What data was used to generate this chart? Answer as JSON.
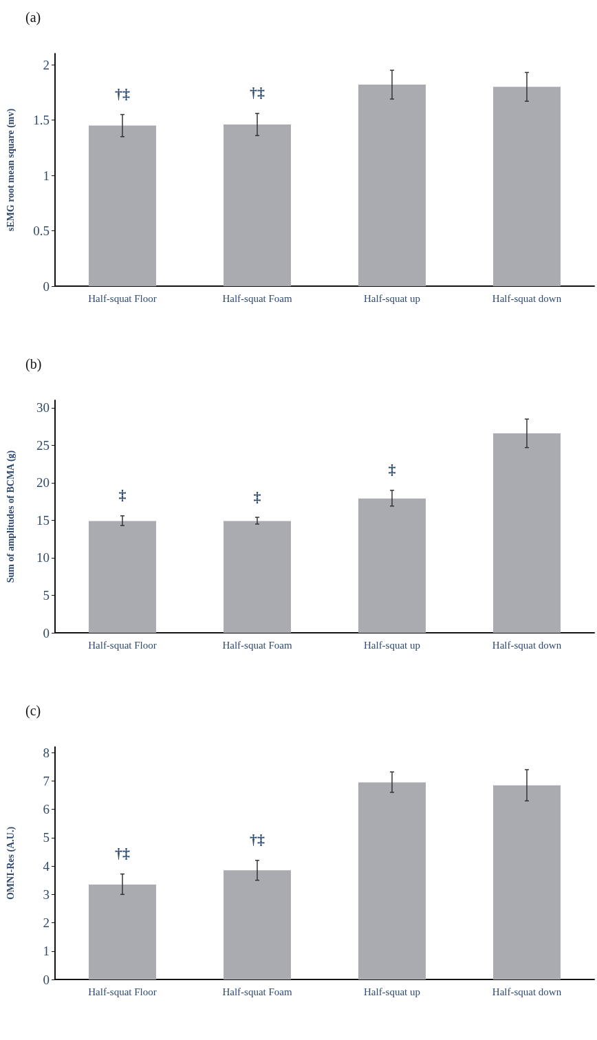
{
  "chart_data": [
    {
      "type": "bar",
      "title": "(a)",
      "ylabel": "sEMG root mean square (mv)",
      "categories": [
        "Half-squat Floor",
        "Half-squat Foam",
        "Half-squat up",
        "Half-squat down"
      ],
      "values": [
        1.45,
        1.46,
        1.82,
        1.8
      ],
      "errors": [
        [
          1.35,
          1.55
        ],
        [
          1.36,
          1.56
        ],
        [
          1.69,
          1.95
        ],
        [
          1.67,
          1.93
        ]
      ],
      "color": "#a9abb1",
      "ylim": [
        0,
        2.1
      ],
      "yticks": [
        0,
        0.5,
        1,
        1.5,
        2
      ],
      "annotations": [
        "†‡",
        "†‡"
      ]
    },
    {
      "type": "bar",
      "title": "(b)",
      "ylabel": "Sum of amplitudes of BCMA (g)",
      "categories": [
        "Half-squat Floor",
        "Half-squat Foam",
        "Half-squat up",
        "Half-squat down"
      ],
      "values": [
        14.9,
        14.9,
        17.9,
        26.6
      ],
      "errors": [
        [
          14.3,
          15.6
        ],
        [
          14.5,
          15.4
        ],
        [
          16.9,
          19.0
        ],
        [
          24.7,
          28.5
        ]
      ],
      "color": "#a9abb1",
      "ylim": [
        0,
        31
      ],
      "yticks": [
        0,
        5,
        10,
        15,
        20,
        25,
        30
      ],
      "annotations": [
        "‡",
        "‡",
        "‡"
      ]
    },
    {
      "type": "bar",
      "title": "(c)",
      "ylabel": "OMNI-Res (A.U.)",
      "categories": [
        "Half-squat Floor",
        "Half-squat Foam",
        "Half-squat up",
        "Half-squat down"
      ],
      "values": [
        3.35,
        3.85,
        6.95,
        6.85
      ],
      "errors": [
        [
          3.0,
          3.72
        ],
        [
          3.5,
          4.2
        ],
        [
          6.6,
          7.32
        ],
        [
          6.3,
          7.4
        ]
      ],
      "color": "#a9abb1",
      "ylim": [
        0,
        8.2
      ],
      "yticks": [
        0,
        1,
        2,
        3,
        4,
        5,
        6,
        7,
        8
      ],
      "annotations": [
        "†‡",
        "†‡"
      ]
    }
  ]
}
